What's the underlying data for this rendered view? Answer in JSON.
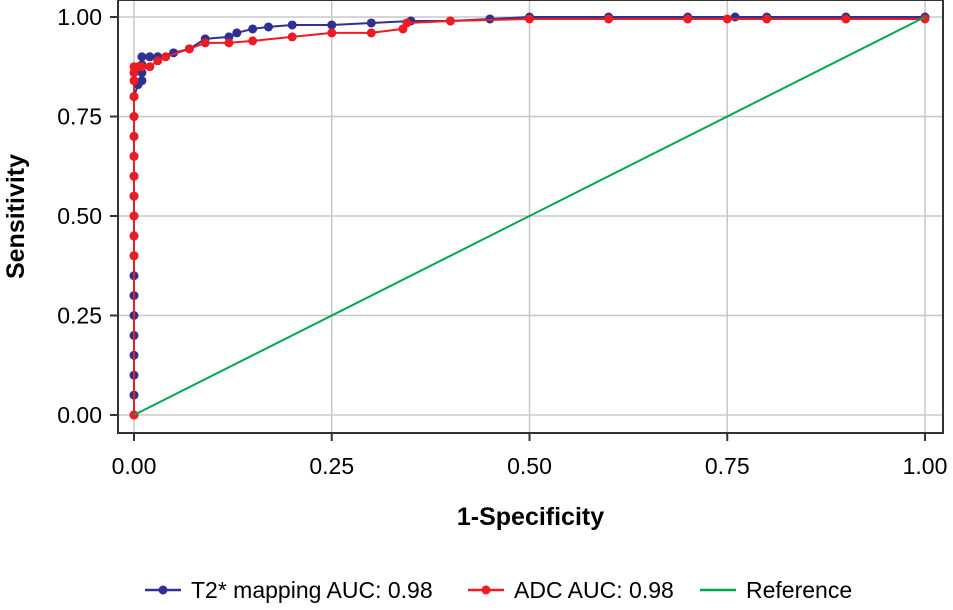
{
  "chart_data": {
    "type": "line",
    "title": "",
    "xlabel": "1-Specificity",
    "ylabel": "Sensitivity",
    "xlim": [
      0,
      1
    ],
    "ylim": [
      0,
      1
    ],
    "grid": true,
    "legend_position": "bottom",
    "x_ticks": [
      0,
      0.25,
      0.5,
      0.75,
      1
    ],
    "x_tick_labels": [
      "0.00",
      "0.25",
      "0.50",
      "0.75",
      "1.00"
    ],
    "y_ticks": [
      0,
      0.25,
      0.5,
      0.75,
      1
    ],
    "y_tick_labels": [
      "0.00",
      "0.25",
      "0.50",
      "0.75",
      "1.00"
    ],
    "series": [
      {
        "name": "T2* mapping AUC: 0.98",
        "color": "#2e3192",
        "markers": true,
        "points": [
          [
            0,
            0
          ],
          [
            0,
            0.05
          ],
          [
            0,
            0.1
          ],
          [
            0,
            0.15
          ],
          [
            0,
            0.2
          ],
          [
            0,
            0.25
          ],
          [
            0,
            0.3
          ],
          [
            0,
            0.35
          ],
          [
            0,
            0.4
          ],
          [
            0,
            0.45
          ],
          [
            0,
            0.5
          ],
          [
            0,
            0.55
          ],
          [
            0,
            0.6
          ],
          [
            0,
            0.65
          ],
          [
            0,
            0.7
          ],
          [
            0,
            0.75
          ],
          [
            0,
            0.8
          ],
          [
            0.005,
            0.83
          ],
          [
            0.01,
            0.84
          ],
          [
            0.01,
            0.86
          ],
          [
            0.01,
            0.88
          ],
          [
            0.01,
            0.9
          ],
          [
            0.02,
            0.9
          ],
          [
            0.03,
            0.9
          ],
          [
            0.05,
            0.91
          ],
          [
            0.07,
            0.92
          ],
          [
            0.09,
            0.945
          ],
          [
            0.12,
            0.95
          ],
          [
            0.13,
            0.96
          ],
          [
            0.15,
            0.97
          ],
          [
            0.17,
            0.975
          ],
          [
            0.2,
            0.98
          ],
          [
            0.25,
            0.98
          ],
          [
            0.3,
            0.985
          ],
          [
            0.35,
            0.99
          ],
          [
            0.4,
            0.99
          ],
          [
            0.45,
            0.995
          ],
          [
            0.5,
            1
          ],
          [
            0.6,
            1
          ],
          [
            0.7,
            1
          ],
          [
            0.76,
            1
          ],
          [
            0.8,
            1
          ],
          [
            0.9,
            1
          ],
          [
            1,
            1
          ]
        ]
      },
      {
        "name": "ADC AUC: 0.98",
        "color": "#ed1c24",
        "markers": true,
        "points": [
          [
            0,
            0
          ],
          [
            0,
            0.4
          ],
          [
            0,
            0.45
          ],
          [
            0,
            0.5
          ],
          [
            0,
            0.55
          ],
          [
            0,
            0.6
          ],
          [
            0,
            0.65
          ],
          [
            0,
            0.7
          ],
          [
            0,
            0.75
          ],
          [
            0,
            0.8
          ],
          [
            0,
            0.84
          ],
          [
            0,
            0.86
          ],
          [
            0,
            0.875
          ],
          [
            0.005,
            0.875
          ],
          [
            0.01,
            0.875
          ],
          [
            0.02,
            0.875
          ],
          [
            0.03,
            0.89
          ],
          [
            0.04,
            0.9
          ],
          [
            0.07,
            0.92
          ],
          [
            0.09,
            0.935
          ],
          [
            0.12,
            0.935
          ],
          [
            0.15,
            0.94
          ],
          [
            0.2,
            0.95
          ],
          [
            0.25,
            0.96
          ],
          [
            0.3,
            0.96
          ],
          [
            0.34,
            0.97
          ],
          [
            0.345,
            0.985
          ],
          [
            0.4,
            0.99
          ],
          [
            0.5,
            0.995
          ],
          [
            0.6,
            0.995
          ],
          [
            0.7,
            0.995
          ],
          [
            0.75,
            0.995
          ],
          [
            0.8,
            0.995
          ],
          [
            0.9,
            0.995
          ],
          [
            1,
            0.995
          ]
        ]
      },
      {
        "name": "Reference",
        "color": "#00a651",
        "markers": false,
        "points": [
          [
            0,
            0
          ],
          [
            1,
            1
          ]
        ]
      }
    ]
  }
}
